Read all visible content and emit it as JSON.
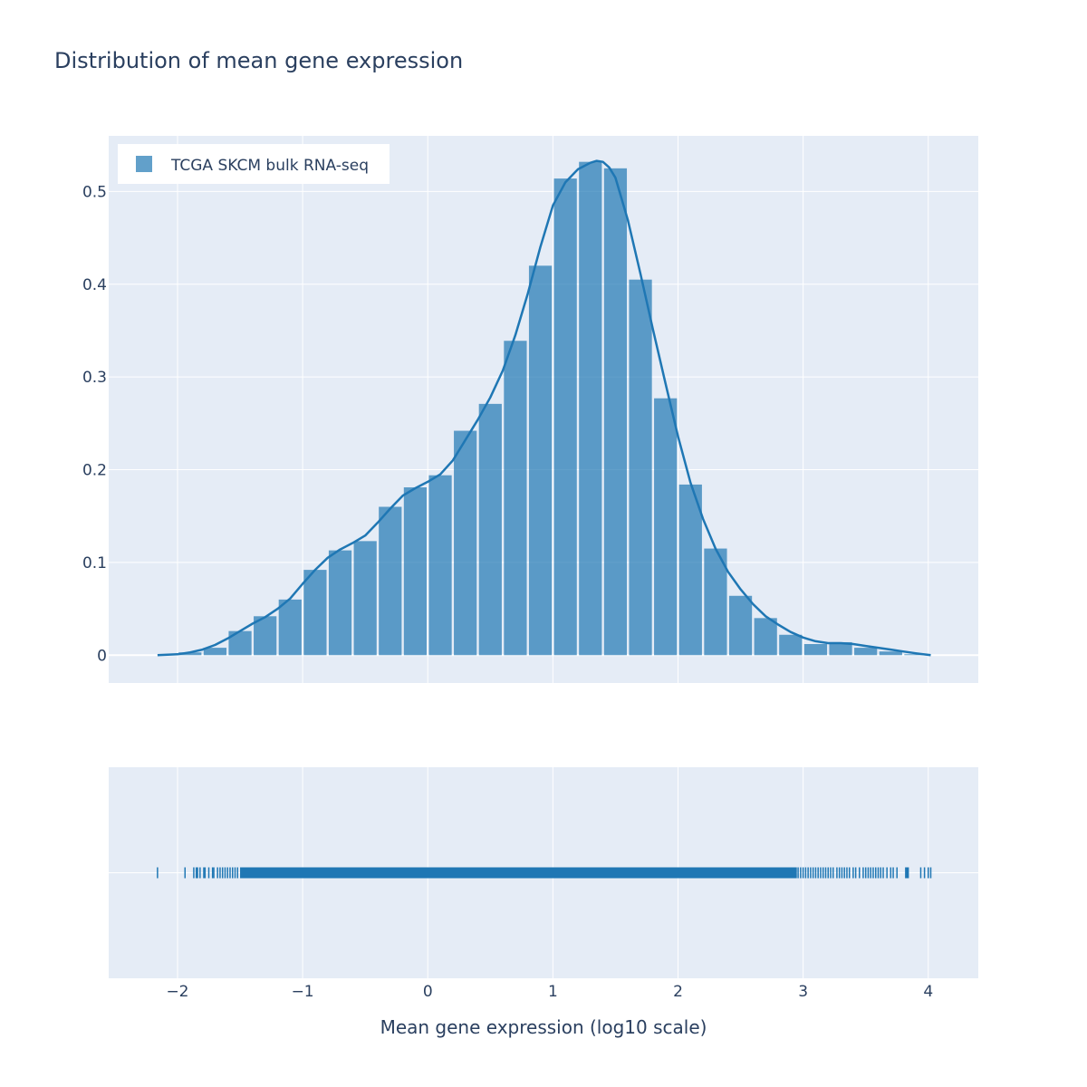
{
  "chart_data": {
    "type": "bar",
    "title": "Distribution of mean gene expression",
    "xlabel": "Mean gene expression (log10 scale)",
    "ylabel": "",
    "xlim": [
      -2.55,
      4.4
    ],
    "ylim": [
      -0.03,
      0.56
    ],
    "x_ticks": [
      -2,
      -1,
      0,
      1,
      2,
      3,
      4
    ],
    "x_tick_labels": [
      "−2",
      "−1",
      "0",
      "1",
      "2",
      "3",
      "4"
    ],
    "y_ticks": [
      0,
      0.1,
      0.2,
      0.3,
      0.4,
      0.5
    ],
    "y_tick_labels": [
      "0",
      "0.1",
      "0.2",
      "0.3",
      "0.4",
      "0.5"
    ],
    "grid": true,
    "legend": {
      "position": "top-left",
      "entries": [
        {
          "name": "TCGA SKCM bulk RNA-seq",
          "color": "#1f77b4"
        }
      ]
    },
    "colors": {
      "series": "#1f77b4",
      "plot_bg": "#e5ecf6",
      "grid": "#ffffff",
      "text": "#2a3f5f"
    },
    "histogram": {
      "name": "TCGA SKCM bulk RNA-seq",
      "bin_edges": [
        -2.0,
        -1.8,
        -1.6,
        -1.4,
        -1.2,
        -1.0,
        -0.8,
        -0.6,
        -0.4,
        -0.2,
        0.0,
        0.2,
        0.4,
        0.6,
        0.8,
        1.0,
        1.2,
        1.4,
        1.6,
        1.8,
        2.0,
        2.2,
        2.4,
        2.6,
        2.8,
        3.0,
        3.2,
        3.4,
        3.6,
        3.8,
        4.0
      ],
      "values": [
        0.003,
        0.008,
        0.026,
        0.042,
        0.06,
        0.092,
        0.113,
        0.123,
        0.16,
        0.181,
        0.194,
        0.242,
        0.271,
        0.339,
        0.42,
        0.514,
        0.532,
        0.525,
        0.405,
        0.277,
        0.184,
        0.115,
        0.064,
        0.04,
        0.022,
        0.012,
        0.014,
        0.008,
        0.004,
        0.001
      ]
    },
    "kde": {
      "x": [
        -2.16,
        -2.0,
        -1.9,
        -1.8,
        -1.7,
        -1.6,
        -1.5,
        -1.4,
        -1.3,
        -1.2,
        -1.1,
        -1.0,
        -0.9,
        -0.8,
        -0.7,
        -0.6,
        -0.5,
        -0.4,
        -0.3,
        -0.2,
        -0.1,
        0.0,
        0.1,
        0.2,
        0.3,
        0.4,
        0.5,
        0.6,
        0.7,
        0.8,
        0.9,
        1.0,
        1.1,
        1.2,
        1.3,
        1.35,
        1.4,
        1.45,
        1.5,
        1.6,
        1.7,
        1.8,
        1.9,
        2.0,
        2.1,
        2.2,
        2.3,
        2.4,
        2.5,
        2.6,
        2.7,
        2.8,
        2.9,
        3.0,
        3.1,
        3.2,
        3.3,
        3.4,
        3.5,
        3.6,
        3.7,
        3.8,
        3.9,
        4.02
      ],
      "y": [
        0.0,
        0.001,
        0.003,
        0.006,
        0.011,
        0.018,
        0.026,
        0.034,
        0.041,
        0.05,
        0.061,
        0.077,
        0.092,
        0.105,
        0.114,
        0.121,
        0.129,
        0.143,
        0.158,
        0.172,
        0.18,
        0.187,
        0.195,
        0.21,
        0.232,
        0.254,
        0.278,
        0.307,
        0.345,
        0.39,
        0.44,
        0.485,
        0.51,
        0.524,
        0.531,
        0.533,
        0.532,
        0.526,
        0.515,
        0.469,
        0.411,
        0.351,
        0.293,
        0.236,
        0.186,
        0.147,
        0.115,
        0.09,
        0.071,
        0.055,
        0.042,
        0.033,
        0.025,
        0.019,
        0.015,
        0.013,
        0.013,
        0.012,
        0.01,
        0.008,
        0.006,
        0.004,
        0.002,
        0.0
      ]
    },
    "rug": {
      "dense_range": [
        -1.5,
        2.95
      ],
      "points": [
        -2.16,
        -1.94,
        -1.87,
        -1.85,
        -1.84,
        -1.82,
        -1.79,
        -1.78,
        -1.75,
        -1.72,
        -1.71,
        -1.68,
        -1.66,
        -1.64,
        -1.62,
        -1.6,
        -1.58,
        -1.56,
        -1.54,
        -1.52,
        2.96,
        2.98,
        3.0,
        3.02,
        3.04,
        3.06,
        3.08,
        3.1,
        3.12,
        3.14,
        3.16,
        3.18,
        3.2,
        3.22,
        3.24,
        3.27,
        3.29,
        3.31,
        3.33,
        3.35,
        3.37,
        3.4,
        3.42,
        3.45,
        3.48,
        3.5,
        3.52,
        3.54,
        3.56,
        3.58,
        3.6,
        3.62,
        3.64,
        3.67,
        3.7,
        3.72,
        3.75,
        3.82,
        3.83,
        3.84,
        3.94,
        3.97,
        4.0,
        4.02
      ]
    }
  }
}
